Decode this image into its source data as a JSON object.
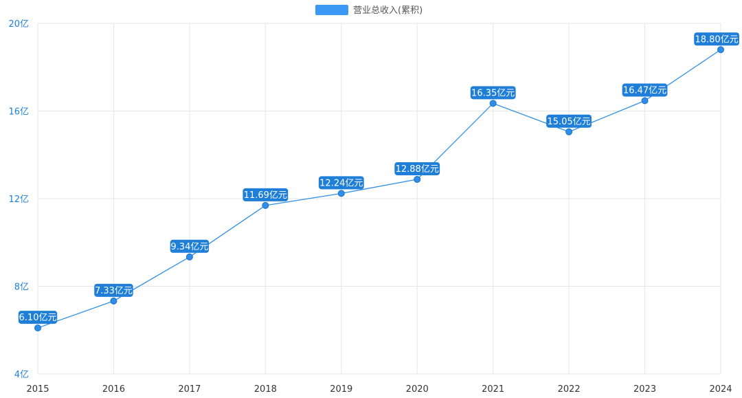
{
  "chart_data": {
    "type": "line",
    "title": "",
    "xlabel": "",
    "ylabel": "",
    "legend": {
      "position": "top-center",
      "entries": [
        "营业总收入(累积)"
      ]
    },
    "categories": [
      "2015",
      "2016",
      "2017",
      "2018",
      "2019",
      "2020",
      "2021",
      "2022",
      "2023",
      "2024"
    ],
    "series": [
      {
        "name": "营业总收入(累积)",
        "values": [
          6.1,
          7.33,
          9.34,
          11.69,
          12.24,
          12.88,
          16.35,
          15.05,
          16.47,
          18.8
        ],
        "labels": [
          "6.10亿元",
          "7.33亿元",
          "9.34亿元",
          "11.69亿元",
          "12.24亿元",
          "12.88亿元",
          "16.35亿元",
          "15.05亿元",
          "16.47亿元",
          "18.80亿元"
        ],
        "color": "#2f8fe8"
      }
    ],
    "ylim": [
      4,
      20
    ],
    "yticks": [
      4,
      8,
      12,
      16,
      20
    ],
    "ytick_labels": [
      "4亿",
      "8亿",
      "12亿",
      "16亿",
      "20亿"
    ],
    "grid": true,
    "colors": {
      "line": "#2f8fe8",
      "label_bg": "#1f7fd8",
      "legend_swatch": "#3b99f5"
    }
  }
}
